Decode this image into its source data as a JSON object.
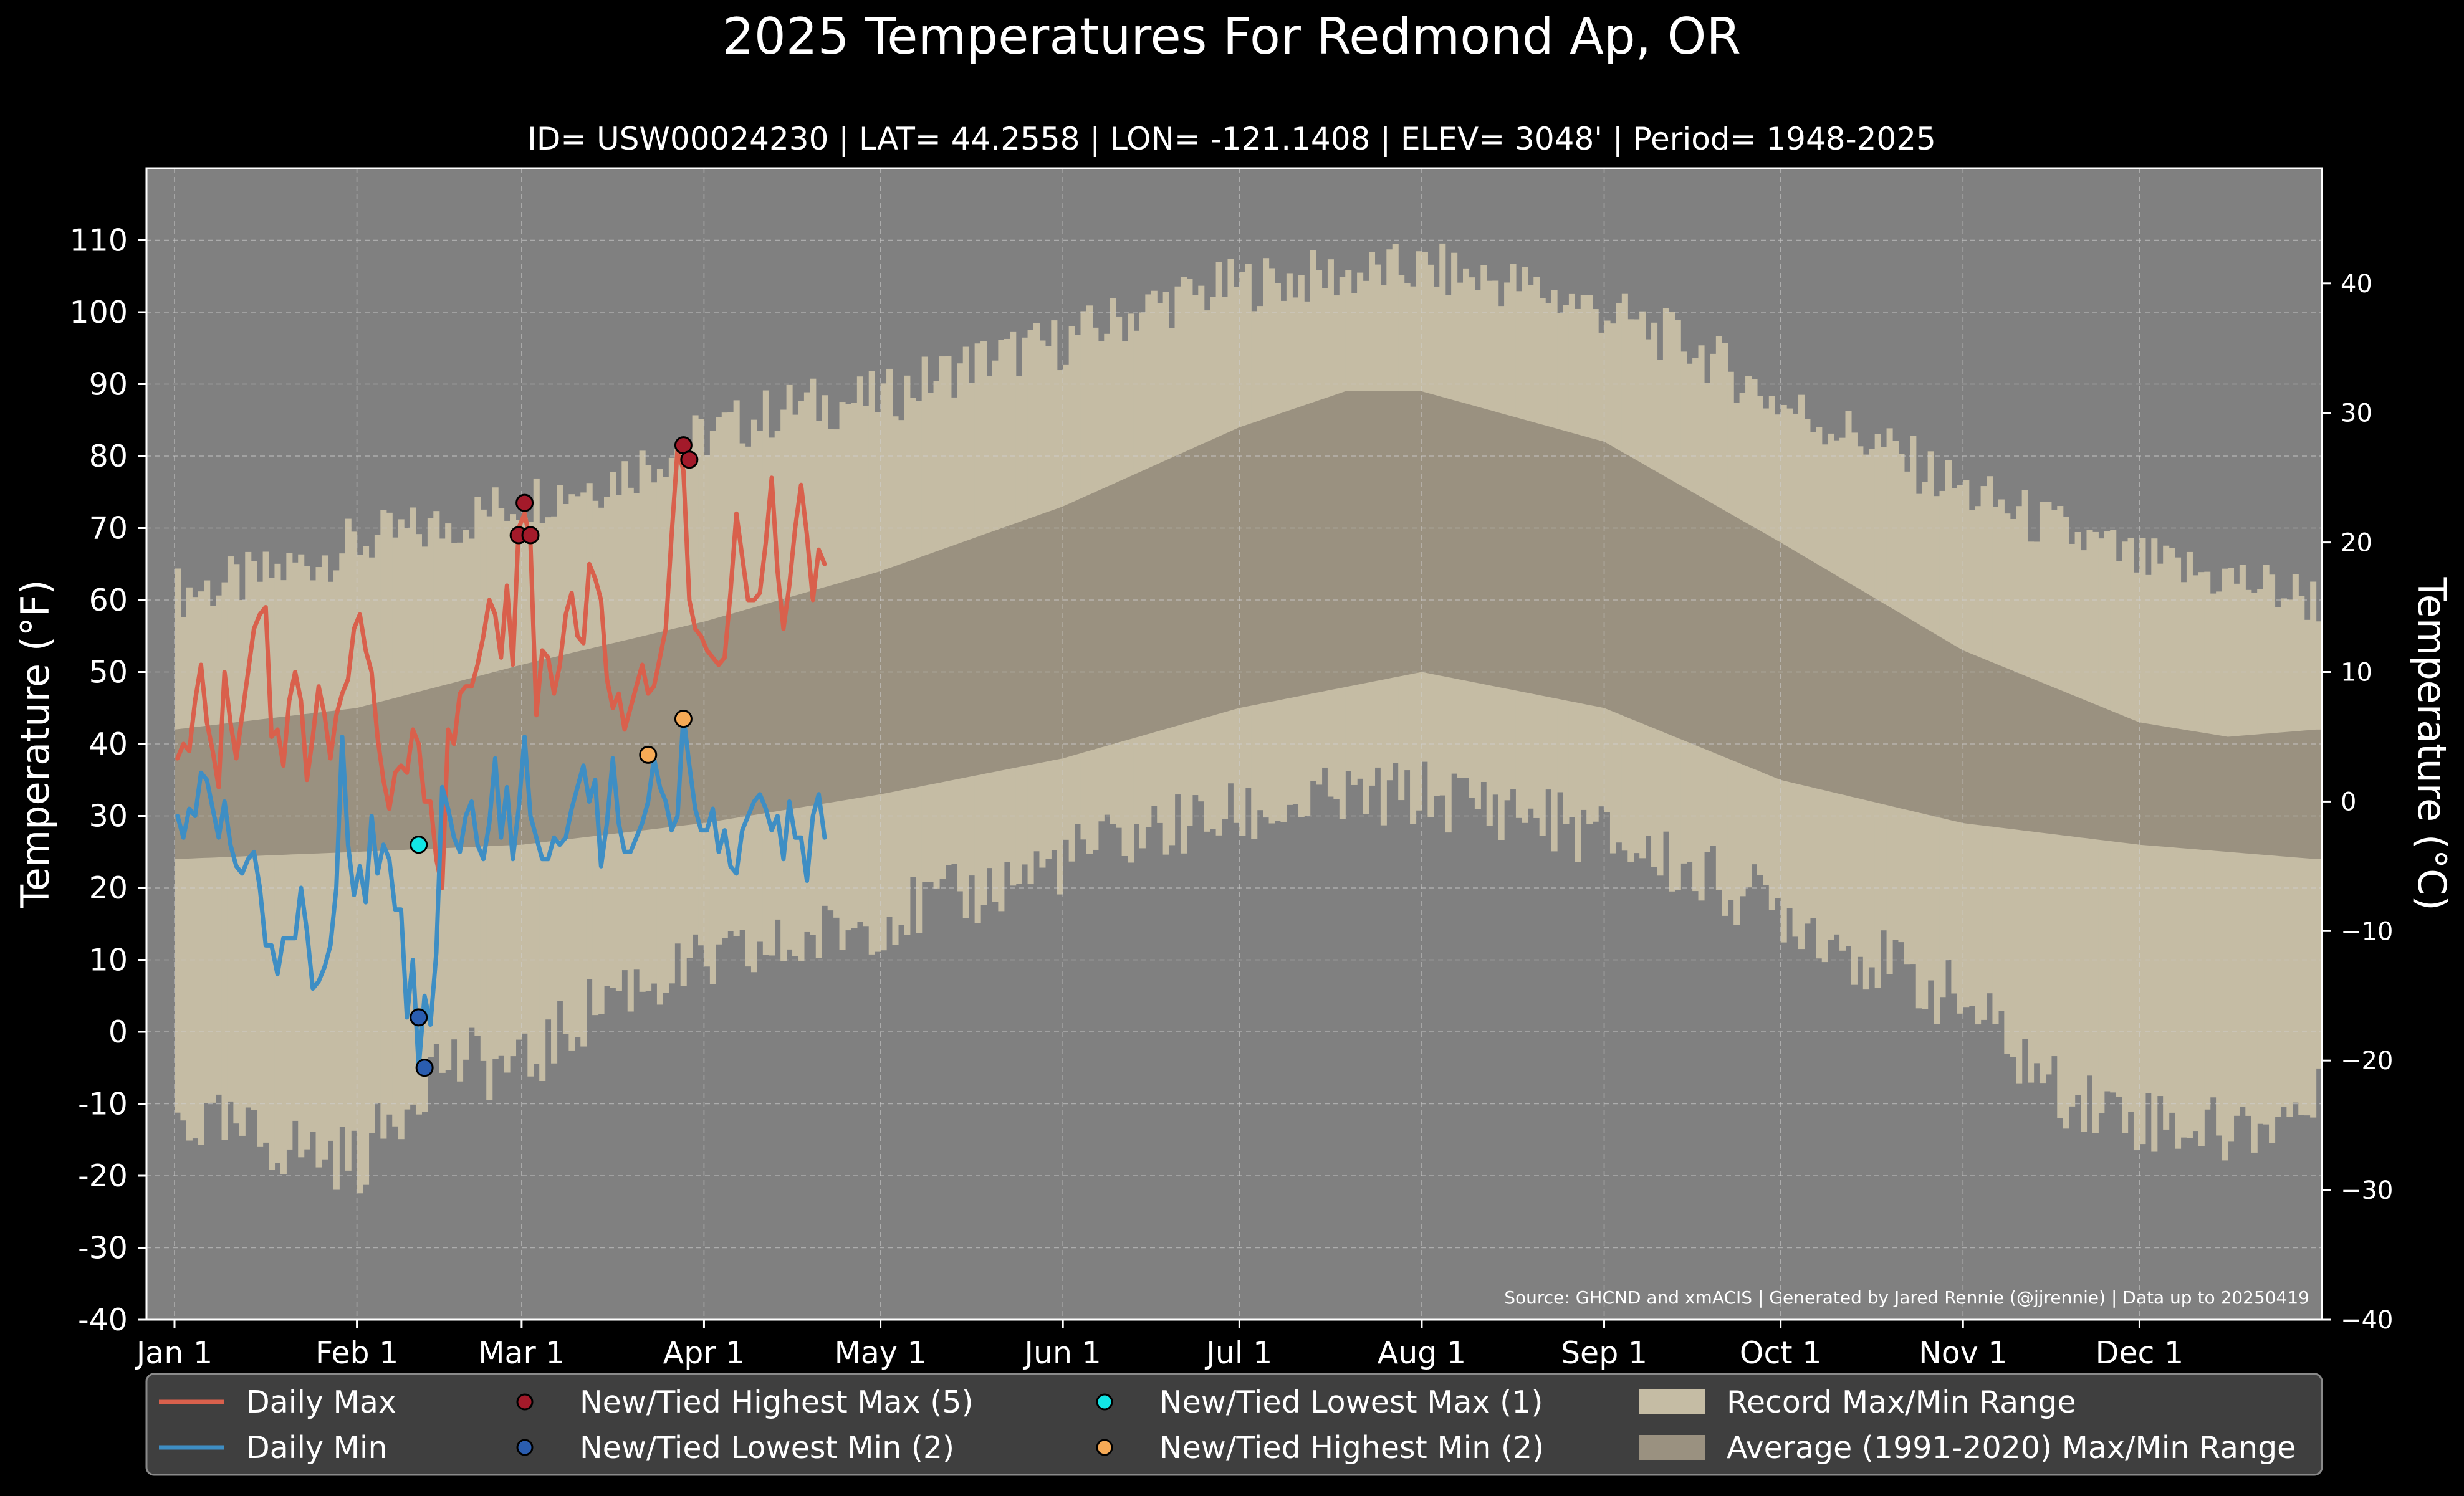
{
  "chart_data": {
    "type": "line",
    "title": "2025 Temperatures For Redmond Ap, OR",
    "subtitle": "ID= USW00024230 | LAT= 44.2558 | LON= -121.1408 | ELEV= 3048' | Period= 1948-2025",
    "ylabel": "Temperature (°F)",
    "ylabel_right": "Temperature (°C)",
    "ylim": [
      -40,
      120
    ],
    "ylim_right_c": [
      -40,
      48.9
    ],
    "xlim_day_of_year": [
      1,
      365
    ],
    "y_ticks": [
      -40,
      -30,
      -20,
      -10,
      0,
      10,
      20,
      30,
      40,
      50,
      60,
      70,
      80,
      90,
      100,
      110
    ],
    "y_ticks_right": [
      -40,
      -30,
      -20,
      -10,
      0,
      10,
      20,
      30,
      40
    ],
    "x_ticks": [
      {
        "label": "Jan 1",
        "day": 1
      },
      {
        "label": "Feb 1",
        "day": 32
      },
      {
        "label": "Mar 1",
        "day": 60
      },
      {
        "label": "Apr 1",
        "day": 91
      },
      {
        "label": "May 1",
        "day": 121
      },
      {
        "label": "Jun 1",
        "day": 152
      },
      {
        "label": "Jul 1",
        "day": 182
      },
      {
        "label": "Aug 1",
        "day": 213
      },
      {
        "label": "Sep 1",
        "day": 244
      },
      {
        "label": "Oct 1",
        "day": 274
      },
      {
        "label": "Nov 1",
        "day": 305
      },
      {
        "label": "Dec 1",
        "day": 335
      }
    ],
    "grid": true,
    "legend_position": "bottom",
    "source_text": "Source: GHCND and xmACIS | Generated by Jared Rennie (@jjrennie) | Data up to 20250419",
    "colors": {
      "background": "#000000",
      "plot_bg": "#808080",
      "record_range": "#c5bca4",
      "average_range": "#9a9180",
      "daily_max": "#d9604c",
      "daily_min": "#3e8ec4",
      "record_high_max": "#a31a2a",
      "record_low_min": "#2a5db0",
      "record_low_max": "#12e6e6",
      "record_high_min": "#f6aa56"
    },
    "record_max_anchors": {
      "days": [
        1,
        15,
        32,
        45,
        60,
        75,
        91,
        106,
        121,
        136,
        152,
        167,
        182,
        197,
        213,
        228,
        244,
        259,
        274,
        289,
        305,
        320,
        335,
        350,
        365
      ],
      "values": [
        61,
        63,
        68,
        70,
        74,
        77,
        83,
        87,
        88,
        93,
        96,
        101,
        104,
        105,
        106,
        104,
        100,
        95,
        87,
        82,
        75,
        70,
        65,
        63,
        60
      ]
    },
    "record_min_anchors": {
      "days": [
        1,
        15,
        32,
        45,
        60,
        75,
        91,
        106,
        121,
        136,
        152,
        167,
        182,
        197,
        213,
        228,
        244,
        259,
        274,
        289,
        305,
        320,
        335,
        350,
        365
      ],
      "values": [
        -12,
        -15,
        -18,
        -4,
        -5,
        6,
        9,
        12,
        16,
        19,
        24,
        28,
        30,
        32,
        33,
        31,
        27,
        22,
        17,
        10,
        4,
        -8,
        -12,
        -14,
        -10
      ]
    },
    "average_max_anchors": {
      "days": [
        1,
        32,
        60,
        91,
        121,
        152,
        182,
        200,
        213,
        244,
        274,
        305,
        335,
        350,
        365
      ],
      "values": [
        42,
        45,
        51,
        57,
        64,
        73,
        84,
        89,
        89,
        82,
        68,
        53,
        43,
        41,
        42
      ]
    },
    "average_min_anchors": {
      "days": [
        1,
        32,
        60,
        91,
        121,
        152,
        182,
        213,
        244,
        274,
        305,
        335,
        365
      ],
      "values": [
        24,
        25,
        26,
        29,
        33,
        38,
        45,
        50,
        45,
        35,
        29,
        26,
        24
      ]
    },
    "series": [
      {
        "name": "Daily Max",
        "start_day": 1,
        "values": [
          38,
          40,
          39,
          46,
          51,
          43,
          39,
          34,
          50,
          43,
          38,
          44,
          50,
          56,
          58,
          59,
          41,
          42,
          37,
          46,
          50,
          46,
          35,
          41,
          48,
          44,
          38,
          44,
          47,
          49,
          56,
          58,
          53,
          50,
          41,
          35,
          31,
          36,
          37,
          36,
          42,
          40,
          32,
          32,
          24,
          20,
          42,
          40,
          47,
          48,
          48,
          51,
          55,
          60,
          58,
          52,
          62,
          51,
          70,
          72,
          68,
          44,
          53,
          52,
          47,
          51,
          58,
          61,
          55,
          54,
          65,
          63,
          60,
          49,
          45,
          47,
          42,
          45,
          48,
          51,
          47,
          48,
          52,
          56,
          69,
          81,
          78,
          60,
          56,
          55,
          53,
          52,
          51,
          52,
          61,
          72,
          66,
          60,
          60,
          61,
          68,
          77,
          64,
          56,
          62,
          70,
          76,
          69,
          60,
          67,
          65
        ]
      },
      {
        "name": "Daily Min",
        "start_day": 1,
        "values": [
          30,
          27,
          31,
          30,
          36,
          35,
          31,
          27,
          32,
          26,
          23,
          22,
          24,
          25,
          20,
          12,
          12,
          8,
          13,
          13,
          13,
          20,
          14,
          6,
          7,
          9,
          12,
          20,
          41,
          26,
          19,
          23,
          18,
          30,
          22,
          26,
          24,
          17,
          17,
          2,
          10,
          -5,
          5,
          1,
          11,
          34,
          31,
          27,
          25,
          30,
          32,
          26,
          24,
          29,
          38,
          27,
          34,
          24,
          31,
          41,
          30,
          27,
          24,
          24,
          27,
          26,
          27,
          31,
          34,
          37,
          32,
          35,
          23,
          29,
          38,
          29,
          25,
          25,
          27,
          29,
          32,
          38,
          34,
          32,
          28,
          30,
          44,
          37,
          31,
          28,
          28,
          31,
          25,
          28,
          23,
          22,
          28,
          30,
          32,
          33,
          31,
          28,
          30,
          24,
          32,
          27,
          27,
          21,
          30,
          33,
          27
        ]
      }
    ],
    "markers": [
      {
        "name": "New/Tied Highest Max (5)",
        "days": [
          59,
          60,
          61,
          87,
          88
        ],
        "values": [
          69,
          73.5,
          69,
          81.5,
          79.5
        ]
      },
      {
        "name": "New/Tied Lowest Min (2)",
        "days": [
          42,
          43
        ],
        "values": [
          2,
          -5
        ]
      },
      {
        "name": "New/Tied Lowest Max (1)",
        "days": [
          42
        ],
        "values": [
          26
        ]
      },
      {
        "name": "New/Tied Highest Min (2)",
        "days": [
          81,
          87
        ],
        "values": [
          38.5,
          43.5
        ]
      }
    ],
    "legend": [
      {
        "label": "Daily Max",
        "kind": "line",
        "color_key": "daily_max"
      },
      {
        "label": "Daily Min",
        "kind": "line",
        "color_key": "daily_min"
      },
      {
        "label": "New/Tied Highest Max (5)",
        "kind": "dot",
        "color_key": "record_high_max"
      },
      {
        "label": "New/Tied Lowest Min (2)",
        "kind": "dot",
        "color_key": "record_low_min"
      },
      {
        "label": "New/Tied Lowest Max (1)",
        "kind": "dot",
        "color_key": "record_low_max"
      },
      {
        "label": "New/Tied Highest Min (2)",
        "kind": "dot",
        "color_key": "record_high_min"
      },
      {
        "label": "Record Max/Min Range",
        "kind": "patch",
        "color_key": "record_range"
      },
      {
        "label": "Average (1991-2020) Max/Min Range",
        "kind": "patch",
        "color_key": "average_range"
      }
    ]
  }
}
